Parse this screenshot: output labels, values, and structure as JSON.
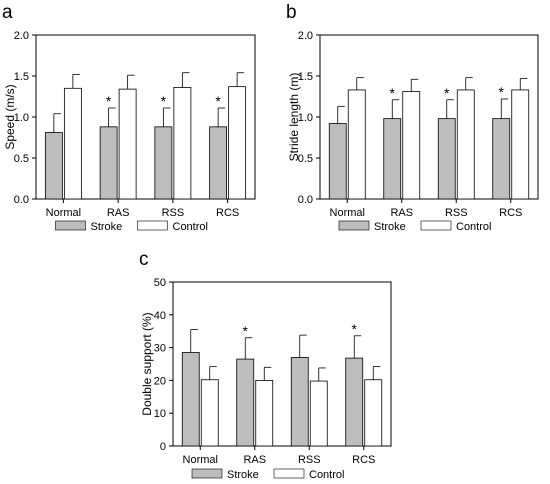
{
  "chart_data": [
    {
      "type": "bar",
      "panel": "a",
      "title": "",
      "xlabel": "",
      "ylabel": "Speed (m/s)",
      "ylim": [
        0,
        2.0
      ],
      "yticks": [
        "0.0",
        "0.5",
        "1.0",
        "1.5",
        "2.0"
      ],
      "categories": [
        "Normal",
        "RAS",
        "RSS",
        "RCS"
      ],
      "series": [
        {
          "name": "Stroke",
          "color": "#bdbdbd",
          "values": [
            0.81,
            0.88,
            0.88,
            0.88
          ],
          "errors": [
            0.23,
            0.23,
            0.23,
            0.23
          ]
        },
        {
          "name": "Control",
          "color": "#ffffff",
          "values": [
            1.35,
            1.34,
            1.36,
            1.37
          ],
          "errors": [
            0.17,
            0.17,
            0.18,
            0.17
          ]
        }
      ],
      "significance": [
        "",
        "*",
        "*",
        "*"
      ],
      "legend": "bottom"
    },
    {
      "type": "bar",
      "panel": "b",
      "title": "",
      "xlabel": "",
      "ylabel": "Stride length (m)",
      "ylim": [
        0,
        2.0
      ],
      "yticks": [
        "0.0",
        "0.5",
        "1.0",
        "1.5",
        "2.0"
      ],
      "categories": [
        "Normal",
        "RAS",
        "RSS",
        "RCS"
      ],
      "series": [
        {
          "name": "Stroke",
          "color": "#bdbdbd",
          "values": [
            0.92,
            0.98,
            0.98,
            0.98
          ],
          "errors": [
            0.21,
            0.23,
            0.23,
            0.24
          ]
        },
        {
          "name": "Control",
          "color": "#ffffff",
          "values": [
            1.33,
            1.31,
            1.33,
            1.33
          ],
          "errors": [
            0.15,
            0.15,
            0.15,
            0.14
          ]
        }
      ],
      "significance": [
        "",
        "*",
        "*",
        "*"
      ],
      "legend": "bottom"
    },
    {
      "type": "bar",
      "panel": "c",
      "title": "",
      "xlabel": "",
      "ylabel": "Double support (%)",
      "ylim": [
        0,
        50
      ],
      "yticks": [
        "0",
        "10",
        "20",
        "30",
        "40",
        "50"
      ],
      "categories": [
        "Normal",
        "RAS",
        "RSS",
        "RCS"
      ],
      "series": [
        {
          "name": "Stroke",
          "color": "#bdbdbd",
          "values": [
            28.5,
            26.5,
            27.0,
            26.8
          ],
          "errors": [
            7.0,
            6.5,
            6.8,
            6.8
          ]
        },
        {
          "name": "Control",
          "color": "#ffffff",
          "values": [
            20.2,
            20.0,
            19.8,
            20.2
          ],
          "errors": [
            4.0,
            4.0,
            4.0,
            4.0
          ]
        }
      ],
      "significance": [
        "",
        "*",
        "",
        "*"
      ],
      "legend": "bottom"
    }
  ]
}
